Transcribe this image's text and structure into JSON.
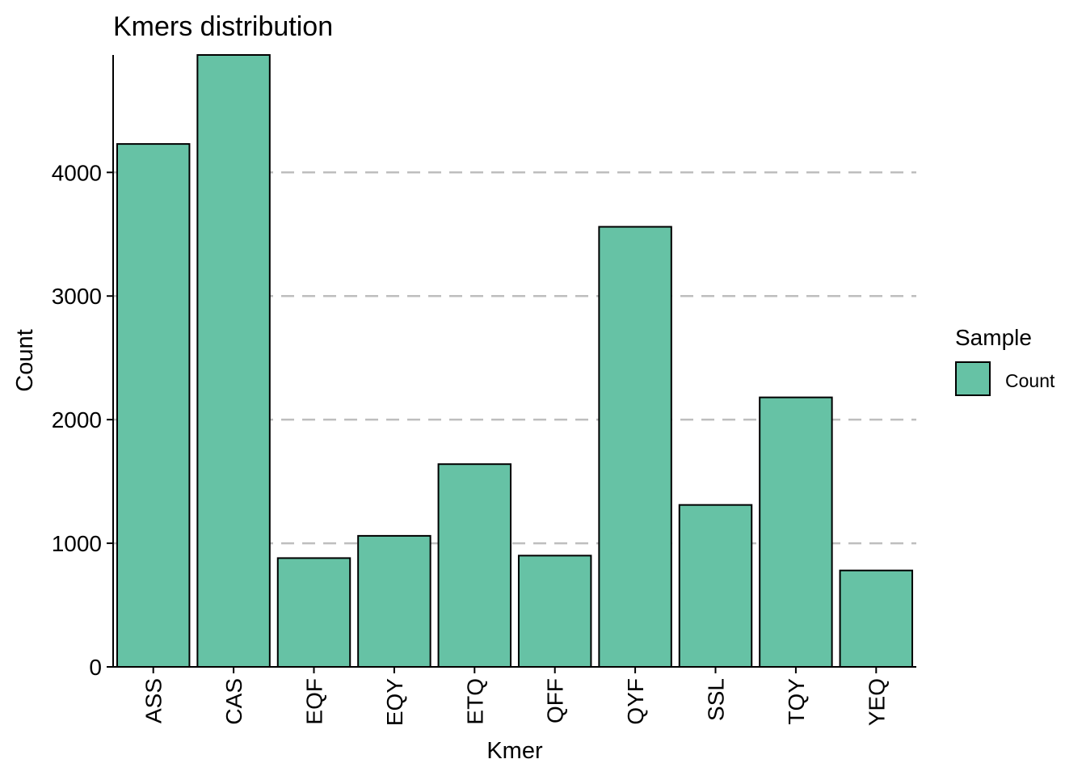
{
  "chart_data": {
    "type": "bar",
    "title": "Kmers distribution",
    "xlabel": "Kmer",
    "ylabel": "Count",
    "categories": [
      "ASS",
      "CAS",
      "EQF",
      "EQY",
      "ETQ",
      "QFF",
      "QYF",
      "SSL",
      "TQY",
      "YEQ"
    ],
    "series": [
      {
        "name": "Count",
        "values": [
          4230,
          4950,
          880,
          1060,
          1640,
          900,
          3560,
          1310,
          2180,
          780
        ]
      }
    ],
    "ylim": [
      0,
      4950
    ],
    "yticks": [
      0,
      1000,
      2000,
      3000,
      4000
    ],
    "ytick_labels": [
      "0",
      "1000",
      "2000",
      "3000",
      "4000"
    ],
    "grid": "horizontal dashed at major ticks",
    "legend": {
      "title": "Sample",
      "position": "right"
    },
    "colors": {
      "bar_fill": "#66c2a5",
      "bar_stroke": "#000000",
      "grid": "#bebebe"
    }
  }
}
